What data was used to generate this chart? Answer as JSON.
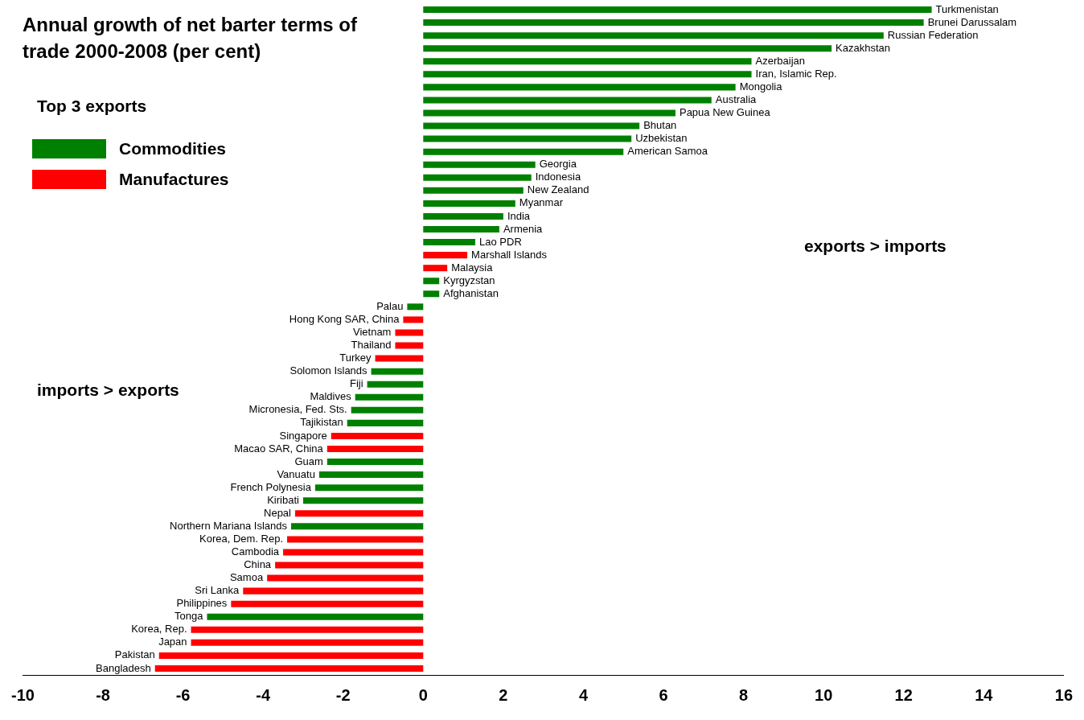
{
  "chart_data": {
    "type": "bar",
    "orientation": "horizontal",
    "title": "Annual growth of net barter terms of trade 2000-2008 (per cent)",
    "legend_title": "Top 3 exports",
    "legend": "top left",
    "grid": false,
    "categories": [
      "Turkmenistan",
      "Brunei Darussalam",
      "Russian Federation",
      "Kazakhstan",
      "Azerbaijan",
      "Iran, Islamic Rep.",
      "Mongolia",
      "Australia",
      "Papua New Guinea",
      "Bhutan",
      "Uzbekistan",
      "American Samoa",
      "Georgia",
      "Indonesia",
      "New Zealand",
      "Myanmar",
      "India",
      "Armenia",
      "Lao PDR",
      "Marshall Islands",
      "Malaysia",
      "Kyrgyzstan",
      "Afghanistan",
      "Palau",
      "Hong Kong SAR, China",
      "Vietnam",
      "Thailand",
      "Turkey",
      "Solomon Islands",
      "Fiji",
      "Maldives",
      "Micronesia, Fed. Sts.",
      "Tajikistan",
      "Singapore",
      "Macao SAR, China",
      "Guam",
      "Vanuatu",
      "French Polynesia",
      "Kiribati",
      "Nepal",
      "Northern Mariana Islands",
      "Korea, Dem. Rep.",
      "Cambodia",
      "China",
      "Samoa",
      "Sri Lanka",
      "Philippines",
      "Tonga",
      "Korea, Rep.",
      "Japan",
      "Pakistan",
      "Bangladesh"
    ],
    "series": [
      {
        "name": "Commodities",
        "color": "#008000",
        "values": [
          12.7,
          12.5,
          11.5,
          10.2,
          8.2,
          8.2,
          7.8,
          7.2,
          6.3,
          5.4,
          5.2,
          5.0,
          2.8,
          2.7,
          2.5,
          2.3,
          2.0,
          1.9,
          1.3,
          null,
          null,
          0.4,
          0.4,
          -0.4,
          null,
          null,
          null,
          null,
          -1.3,
          -1.4,
          -1.7,
          -1.8,
          -1.9,
          null,
          null,
          -2.4,
          -2.6,
          -2.7,
          -3.0,
          null,
          -3.3,
          null,
          null,
          null,
          null,
          null,
          null,
          -5.4,
          null,
          null,
          null,
          null
        ]
      },
      {
        "name": "Manufactures",
        "color": "#ff0000",
        "values": [
          null,
          null,
          null,
          null,
          null,
          null,
          null,
          null,
          null,
          null,
          null,
          null,
          null,
          null,
          null,
          null,
          null,
          null,
          null,
          1.1,
          0.6,
          null,
          null,
          null,
          -0.5,
          -0.7,
          -0.7,
          -1.2,
          null,
          null,
          null,
          null,
          null,
          -2.3,
          -2.4,
          null,
          null,
          null,
          null,
          -3.2,
          null,
          -3.4,
          -3.5,
          -3.7,
          -3.9,
          -4.5,
          -4.8,
          null,
          -5.8,
          -5.8,
          -6.6,
          -6.7
        ]
      }
    ],
    "xlim": [
      -10,
      16
    ],
    "xticks": [
      -10,
      -8,
      -6,
      -4,
      -2,
      0,
      2,
      4,
      6,
      8,
      10,
      12,
      14,
      16
    ],
    "annotations": [
      "exports > imports",
      "imports > exports"
    ]
  }
}
